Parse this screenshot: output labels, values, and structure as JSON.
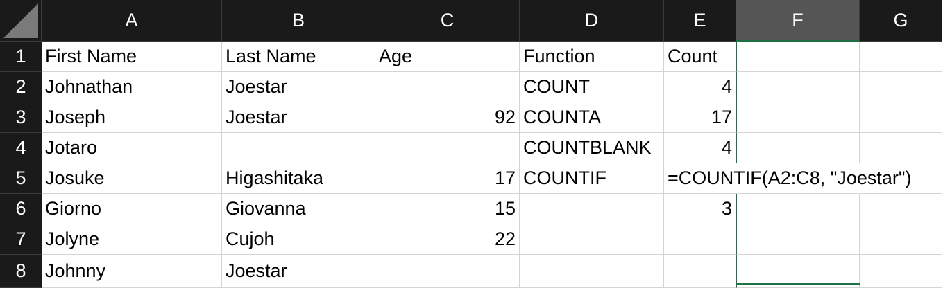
{
  "columns": [
    "A",
    "B",
    "C",
    "D",
    "E",
    "F",
    "G"
  ],
  "selected_column": "F",
  "rows": [
    {
      "num": "1",
      "A": "First Name",
      "B": "Last Name",
      "C": "Age",
      "D": "Function",
      "E": "Count",
      "F": "",
      "G": ""
    },
    {
      "num": "2",
      "A": "Johnathan",
      "B": "Joestar",
      "C": "",
      "D": "COUNT",
      "E": "4",
      "F": "",
      "G": ""
    },
    {
      "num": "3",
      "A": "Joseph",
      "B": "Joestar",
      "C": "92",
      "D": "COUNTA",
      "E": "17",
      "F": "",
      "G": ""
    },
    {
      "num": "4",
      "A": "Jotaro",
      "B": "",
      "C": "",
      "D": "COUNTBLANK",
      "E": "4",
      "F": "",
      "G": ""
    },
    {
      "num": "5",
      "A": "Josuke",
      "B": "Higashitaka",
      "C": "17",
      "D": "COUNTIF",
      "E": "=COUNTIF(A2:C8, \"Joestar\")",
      "F": "",
      "G": ""
    },
    {
      "num": "6",
      "A": "Giorno",
      "B": "Giovanna",
      "C": "15",
      "D": "",
      "E": "3",
      "F": "",
      "G": ""
    },
    {
      "num": "7",
      "A": "Jolyne",
      "B": "Cujoh",
      "C": "22",
      "D": "",
      "E": "",
      "F": "",
      "G": ""
    },
    {
      "num": "8",
      "A": "Johnny",
      "B": "Joestar",
      "C": "",
      "D": "",
      "E": "",
      "F": "",
      "G": ""
    }
  ],
  "colors": {
    "header_bg": "#1a1a1a",
    "selected_header_bg": "#555555",
    "selection_accent": "#1e7145",
    "grid_line": "#d4d4d4"
  }
}
